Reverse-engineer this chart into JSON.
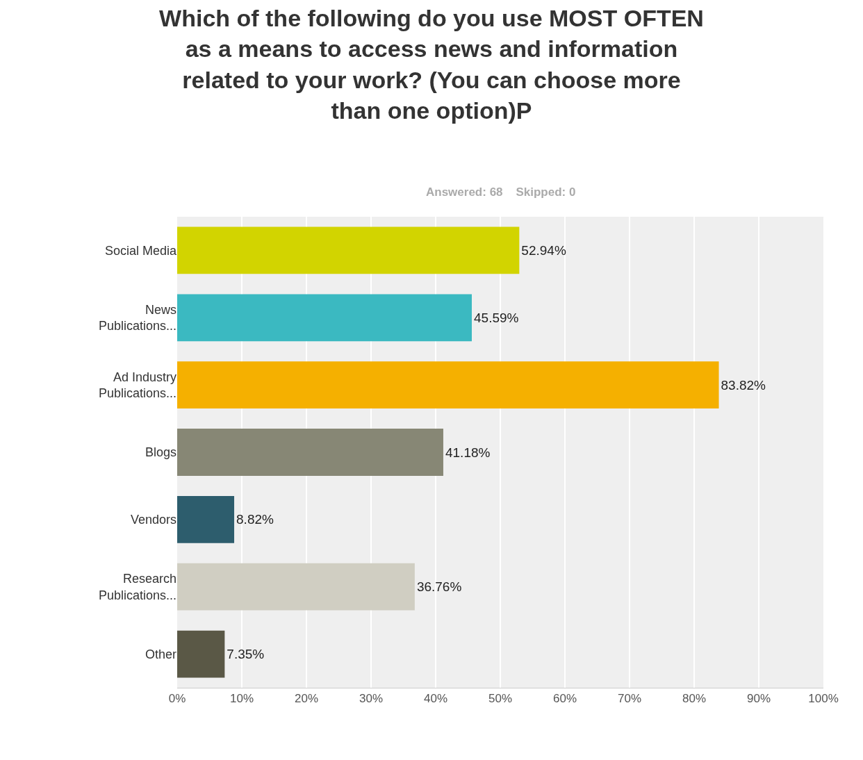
{
  "chart_data": {
    "type": "bar",
    "orientation": "horizontal",
    "title": "Which of the following do you use MOST OFTEN as a means to access news and information related to your work? (You can choose more than one option)P",
    "subtitle": "Answered: 68    Skipped: 0",
    "categories": [
      "Social Media",
      "News Publications...",
      "Ad Industry Publications...",
      "Blogs",
      "Vendors",
      "Research Publications...",
      "Other"
    ],
    "values": [
      52.94,
      45.59,
      83.82,
      41.18,
      8.82,
      36.76,
      7.35
    ],
    "value_labels": [
      "52.94%",
      "45.59%",
      "83.82%",
      "41.18%",
      "8.82%",
      "36.76%",
      "7.35%"
    ],
    "colors": [
      "#d2d400",
      "#3bb9c1",
      "#f5b000",
      "#878775",
      "#2d5d6d",
      "#d0cec2",
      "#5a5846"
    ],
    "xlim": [
      0,
      100
    ],
    "xticks": [
      {
        "value": 0,
        "label": "0%"
      },
      {
        "value": 10,
        "label": "10%"
      },
      {
        "value": 20,
        "label": "20%"
      },
      {
        "value": 30,
        "label": "30%"
      },
      {
        "value": 40,
        "label": "40%"
      },
      {
        "value": 50,
        "label": "50%"
      },
      {
        "value": 60,
        "label": "60%"
      },
      {
        "value": 70,
        "label": "70%"
      },
      {
        "value": 80,
        "label": "80%"
      },
      {
        "value": 90,
        "label": "90%"
      },
      {
        "value": 100,
        "label": "100%"
      }
    ],
    "grid": "x",
    "legend": false
  }
}
